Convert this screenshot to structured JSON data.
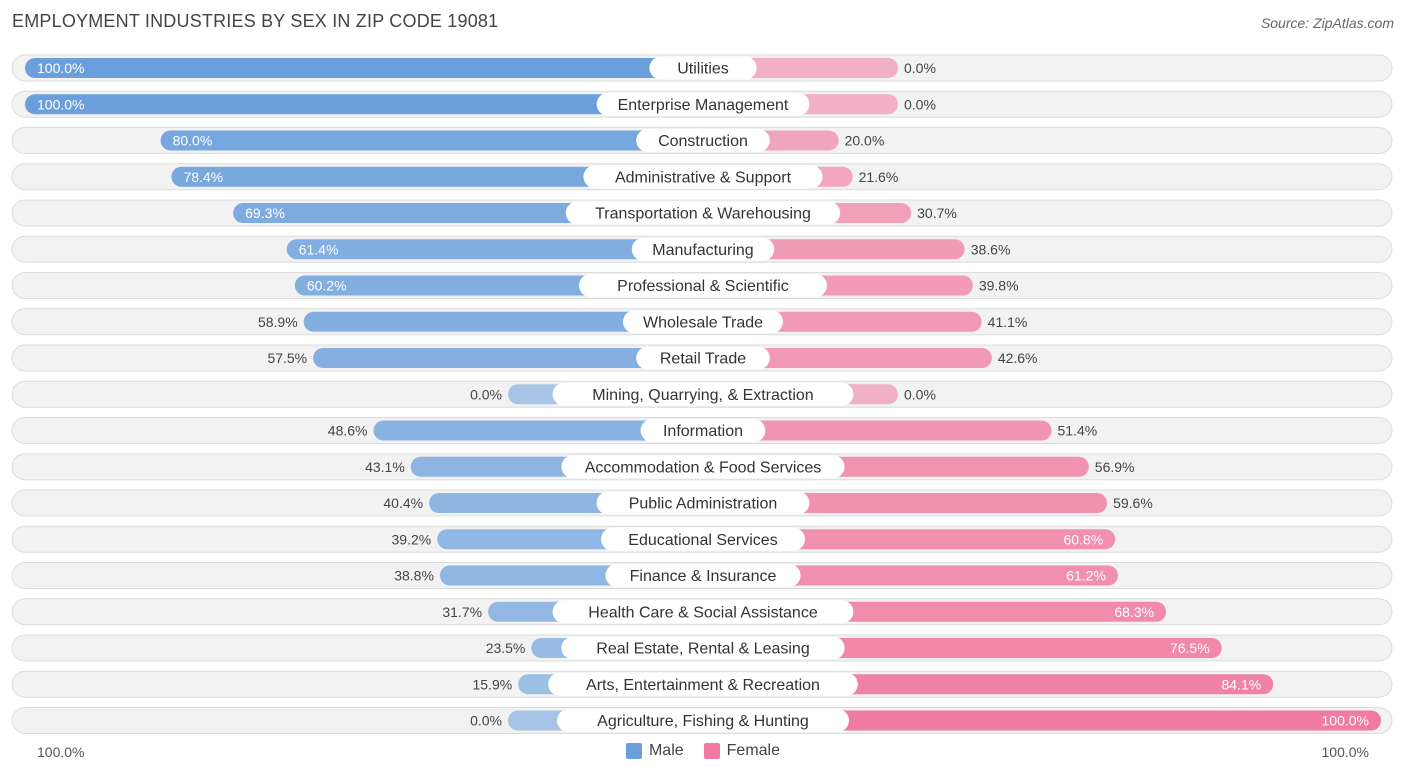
{
  "title": "EMPLOYMENT INDUSTRIES BY SEX IN ZIP CODE 19081",
  "source": "Source: ZipAtlas.com",
  "colors": {
    "male": "#6a9fdc",
    "female": "#f07aa0"
  },
  "chart_data": {
    "type": "bar",
    "orientation": "horizontal-diverging",
    "categories": [
      "Utilities",
      "Enterprise Management",
      "Construction",
      "Administrative & Support",
      "Transportation & Warehousing",
      "Manufacturing",
      "Professional & Scientific",
      "Wholesale Trade",
      "Retail Trade",
      "Mining, Quarrying, & Extraction",
      "Information",
      "Accommodation & Food Services",
      "Public Administration",
      "Educational Services",
      "Finance & Insurance",
      "Health Care & Social Assistance",
      "Real Estate, Rental & Leasing",
      "Arts, Entertainment & Recreation",
      "Agriculture, Fishing & Hunting"
    ],
    "series": [
      {
        "name": "Male",
        "values": [
          100.0,
          100.0,
          80.0,
          78.4,
          69.3,
          61.4,
          60.2,
          58.9,
          57.5,
          0.0,
          48.6,
          43.1,
          40.4,
          39.2,
          38.8,
          31.7,
          23.5,
          15.9,
          0.0
        ]
      },
      {
        "name": "Female",
        "values": [
          0.0,
          0.0,
          20.0,
          21.6,
          30.7,
          38.6,
          39.8,
          41.1,
          42.6,
          0.0,
          51.4,
          56.9,
          59.6,
          60.8,
          61.2,
          68.3,
          76.5,
          84.1,
          100.0
        ]
      }
    ],
    "value_labels": {
      "male": [
        "100.0%",
        "100.0%",
        "80.0%",
        "78.4%",
        "69.3%",
        "61.4%",
        "60.2%",
        "58.9%",
        "57.5%",
        "0.0%",
        "48.6%",
        "43.1%",
        "40.4%",
        "39.2%",
        "38.8%",
        "31.7%",
        "23.5%",
        "15.9%",
        "0.0%"
      ],
      "female": [
        "0.0%",
        "0.0%",
        "20.0%",
        "21.6%",
        "30.7%",
        "38.6%",
        "39.8%",
        "41.1%",
        "42.6%",
        "0.0%",
        "51.4%",
        "56.9%",
        "59.6%",
        "60.8%",
        "61.2%",
        "68.3%",
        "76.5%",
        "84.1%",
        "100.0%"
      ]
    },
    "xlim": [
      -100,
      100
    ],
    "axis_labels": {
      "left": "100.0%",
      "right": "100.0%"
    },
    "legend": [
      "Male",
      "Female"
    ],
    "legend_position": "bottom-center"
  }
}
